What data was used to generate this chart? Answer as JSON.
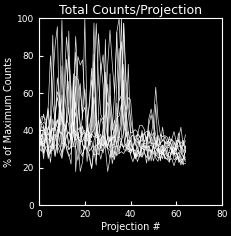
{
  "title": "Total Counts/Projection",
  "xlabel": "Projection #",
  "ylabel": "% of Maximum Counts",
  "xlim": [
    0,
    80
  ],
  "ylim": [
    0,
    100
  ],
  "xticks": [
    0,
    20,
    40,
    60,
    80
  ],
  "yticks": [
    0,
    20,
    40,
    60,
    80,
    100
  ],
  "bg_color": "#000000",
  "line_color": "#ffffff",
  "n_projections": 64,
  "n_lines": 14,
  "seed": 7,
  "figsize": [
    2.32,
    2.36
  ],
  "dpi": 100,
  "title_fontsize": 9,
  "label_fontsize": 7,
  "tick_fontsize": 6.5
}
